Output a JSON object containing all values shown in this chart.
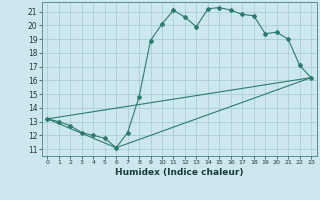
{
  "xlabel": "Humidex (Indice chaleur)",
  "ylabel": "",
  "bg_color": "#cce8ee",
  "grid_color": "#aacdd6",
  "line_color": "#2d7a6e",
  "xlim": [
    -0.5,
    23.5
  ],
  "ylim": [
    10.5,
    21.7
  ],
  "xticks": [
    0,
    1,
    2,
    3,
    4,
    5,
    6,
    7,
    8,
    9,
    10,
    11,
    12,
    13,
    14,
    15,
    16,
    17,
    18,
    19,
    20,
    21,
    22,
    23
  ],
  "yticks": [
    11,
    12,
    13,
    14,
    15,
    16,
    17,
    18,
    19,
    20,
    21
  ],
  "line1_x": [
    0,
    1,
    2,
    3,
    4,
    5,
    6,
    7,
    8,
    9,
    10,
    11,
    12,
    13,
    14,
    15,
    16,
    17,
    18,
    19,
    20,
    21,
    22,
    23
  ],
  "line1_y": [
    13.2,
    13.0,
    12.7,
    12.2,
    12.0,
    11.8,
    11.1,
    12.2,
    14.8,
    18.9,
    20.1,
    21.1,
    20.6,
    19.9,
    21.2,
    21.3,
    21.1,
    20.8,
    20.7,
    19.4,
    19.5,
    19.0,
    17.1,
    16.2
  ],
  "line2_x": [
    0,
    23
  ],
  "line2_y": [
    13.2,
    16.2
  ],
  "line3_x": [
    0,
    6,
    23
  ],
  "line3_y": [
    13.2,
    11.1,
    16.2
  ]
}
